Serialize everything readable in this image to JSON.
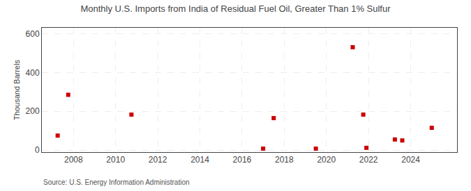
{
  "chart_data": {
    "type": "scatter",
    "title": "Monthly U.S. Imports from India of Residual Fuel Oil, Greater Than 1% Sulfur",
    "ylabel": "Thousand Barrels",
    "annotations": [
      "Source: U.S. Energy Information Administration"
    ],
    "x": [
      2007.25,
      2007.75,
      2010.75,
      2017.0,
      2017.5,
      2019.5,
      2021.25,
      2021.75,
      2021.9,
      2023.25,
      2023.6,
      2025.0
    ],
    "values": [
      75,
      285,
      183,
      8,
      165,
      8,
      530,
      183,
      12,
      55,
      50,
      115
    ],
    "color": "#cc0000",
    "marker": "square",
    "xlim": [
      2006.5,
      2026.2
    ],
    "ylim": [
      -10,
      630
    ],
    "xticks": [
      2008,
      2010,
      2012,
      2014,
      2016,
      2018,
      2020,
      2022,
      2024
    ],
    "yticks": [
      0,
      200,
      400,
      600
    ],
    "grid": true
  }
}
